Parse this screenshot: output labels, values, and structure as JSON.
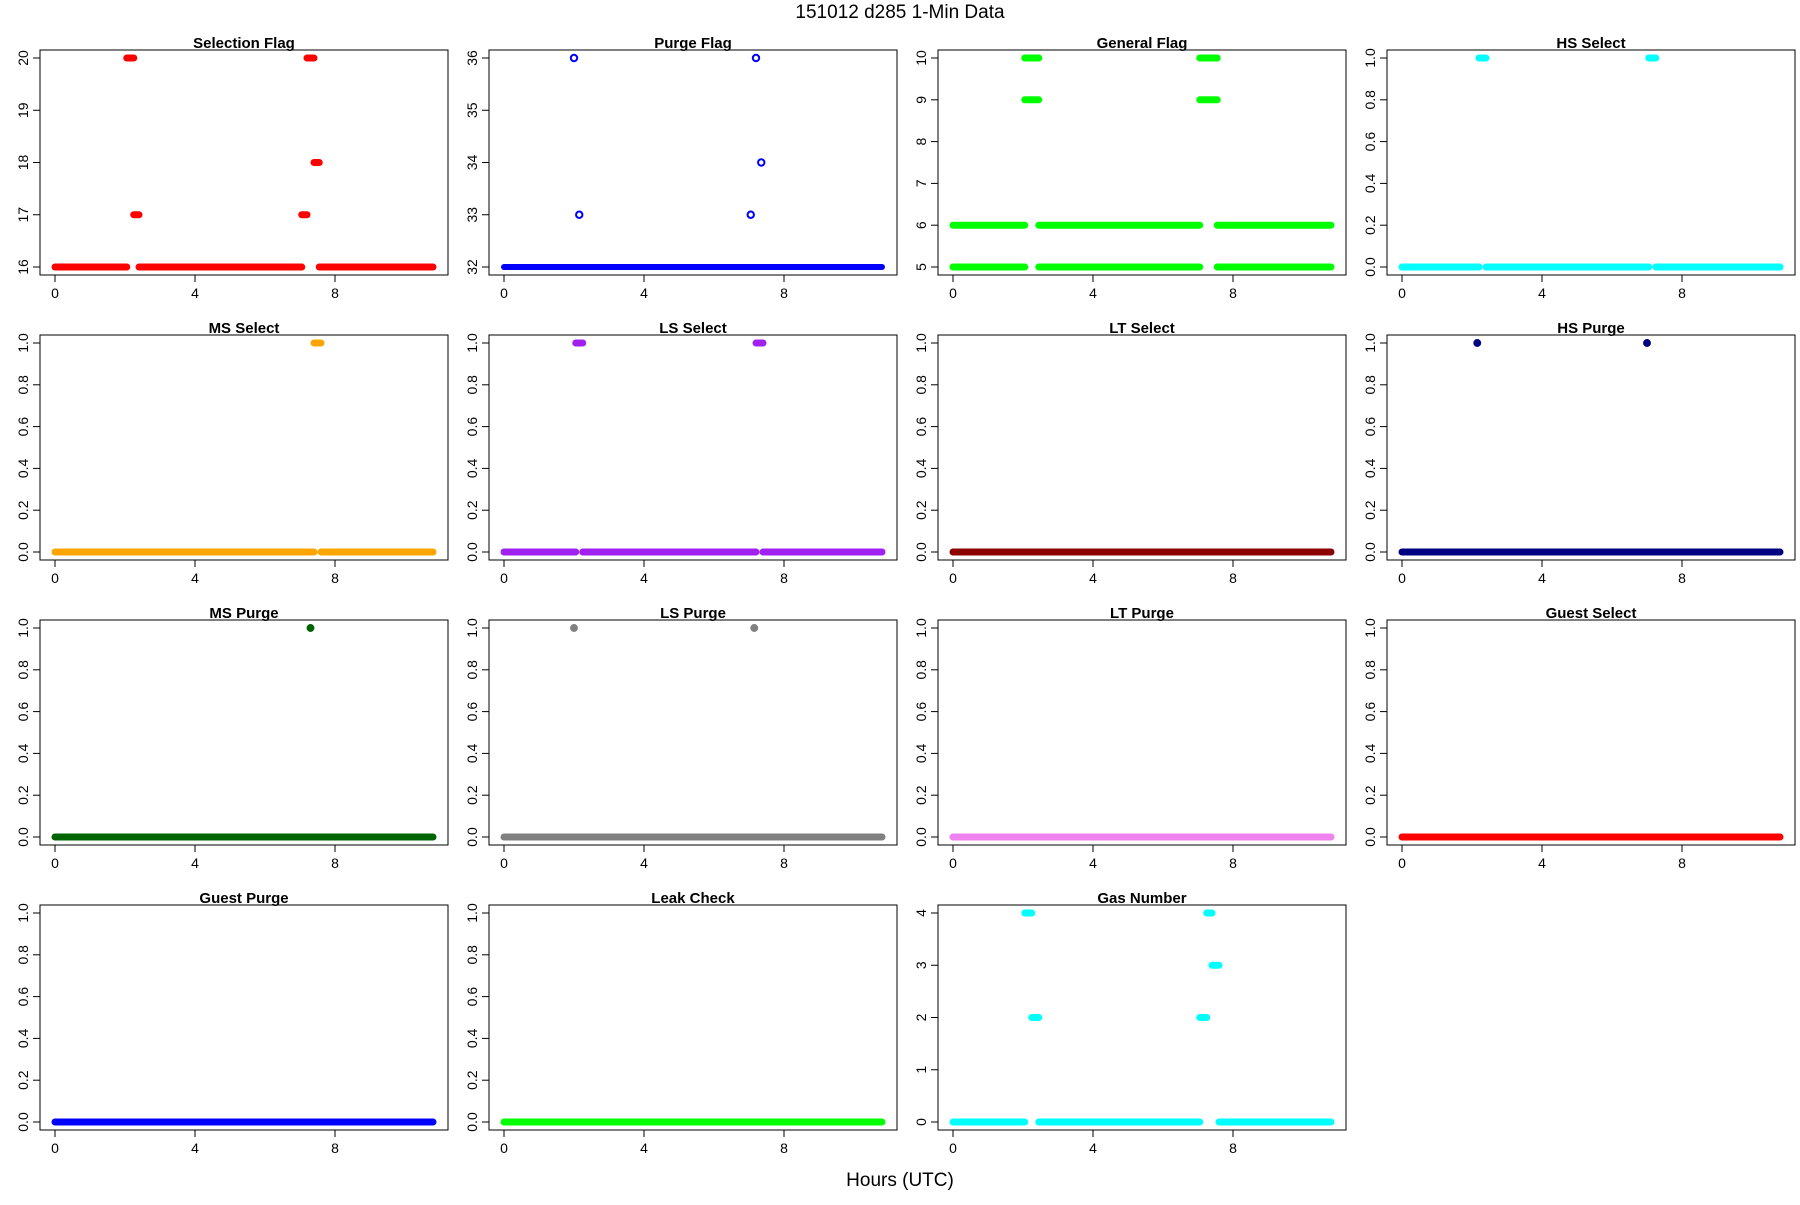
{
  "figure": {
    "title": "151012   d285   1-Min Data",
    "xlabel": "Hours (UTC)"
  },
  "chart_data": [
    {
      "type": "scatter",
      "title": "Selection Flag",
      "color": "#ff0000",
      "marker": "filled",
      "xlim": [
        0,
        10.8
      ],
      "ylim": [
        16,
        20
      ],
      "xticks": [
        0,
        4,
        8
      ],
      "yticks": [
        16,
        17,
        18,
        19,
        20
      ],
      "segments": [
        [
          0,
          2.05,
          16
        ],
        [
          2.05,
          2.25,
          20
        ],
        [
          2.25,
          2.4,
          17
        ],
        [
          2.4,
          7.05,
          16
        ],
        [
          7.05,
          7.2,
          17
        ],
        [
          7.2,
          7.4,
          20
        ],
        [
          7.4,
          7.55,
          18
        ],
        [
          7.55,
          10.8,
          16
        ]
      ]
    },
    {
      "type": "scatter",
      "title": "Purge Flag",
      "color": "#0000ff",
      "marker": "open",
      "xlim": [
        0,
        10.8
      ],
      "ylim": [
        32,
        36
      ],
      "xticks": [
        0,
        4,
        8
      ],
      "yticks": [
        32,
        33,
        34,
        35,
        36
      ],
      "segments": [
        [
          0,
          10.8,
          32
        ]
      ],
      "points": [
        [
          2.0,
          36
        ],
        [
          2.15,
          33
        ],
        [
          7.05,
          33
        ],
        [
          7.2,
          36
        ],
        [
          7.35,
          34
        ]
      ]
    },
    {
      "type": "scatter",
      "title": "General Flag",
      "color": "#00ff00",
      "marker": "filled",
      "xlim": [
        0,
        10.8
      ],
      "ylim": [
        5,
        10
      ],
      "xticks": [
        0,
        4,
        8
      ],
      "yticks": [
        5,
        6,
        7,
        8,
        9,
        10
      ],
      "segments": [
        [
          0,
          2.05,
          5
        ],
        [
          0,
          2.05,
          6
        ],
        [
          2.05,
          2.45,
          10
        ],
        [
          2.05,
          2.45,
          9
        ],
        [
          2.45,
          7.05,
          5
        ],
        [
          2.45,
          7.05,
          6
        ],
        [
          7.05,
          7.55,
          10
        ],
        [
          7.05,
          7.55,
          9
        ],
        [
          7.55,
          10.8,
          5
        ],
        [
          7.55,
          10.8,
          6
        ]
      ]
    },
    {
      "type": "scatter",
      "title": "HS Select",
      "color": "#00ffff",
      "marker": "filled",
      "xlim": [
        0,
        10.8
      ],
      "ylim": [
        0,
        1
      ],
      "xticks": [
        0,
        4,
        8
      ],
      "yticks": [
        0,
        0.2,
        0.4,
        0.6,
        0.8,
        1.0
      ],
      "segments": [
        [
          0,
          2.2,
          0
        ],
        [
          2.2,
          2.4,
          1
        ],
        [
          2.4,
          7.05,
          0
        ],
        [
          7.05,
          7.25,
          1
        ],
        [
          7.25,
          10.8,
          0
        ]
      ]
    },
    {
      "type": "scatter",
      "title": "MS Select",
      "color": "#ffa500",
      "marker": "filled",
      "xlim": [
        0,
        10.8
      ],
      "ylim": [
        0,
        1
      ],
      "xticks": [
        0,
        4,
        8
      ],
      "yticks": [
        0,
        0.2,
        0.4,
        0.6,
        0.8,
        1.0
      ],
      "segments": [
        [
          0,
          7.4,
          0
        ],
        [
          7.4,
          7.6,
          1
        ],
        [
          7.6,
          10.8,
          0
        ]
      ]
    },
    {
      "type": "scatter",
      "title": "LS Select",
      "color": "#a020f0",
      "marker": "filled",
      "xlim": [
        0,
        10.8
      ],
      "ylim": [
        0,
        1
      ],
      "xticks": [
        0,
        4,
        8
      ],
      "yticks": [
        0,
        0.2,
        0.4,
        0.6,
        0.8,
        1.0
      ],
      "segments": [
        [
          0,
          2.05,
          0
        ],
        [
          2.05,
          2.25,
          1
        ],
        [
          2.25,
          7.2,
          0
        ],
        [
          7.2,
          7.4,
          1
        ],
        [
          7.4,
          10.8,
          0
        ]
      ]
    },
    {
      "type": "scatter",
      "title": "LT Select",
      "color": "#8b0000",
      "marker": "filled",
      "xlim": [
        0,
        10.8
      ],
      "ylim": [
        0,
        1
      ],
      "xticks": [
        0,
        4,
        8
      ],
      "yticks": [
        0,
        0.2,
        0.4,
        0.6,
        0.8,
        1.0
      ],
      "segments": [
        [
          0,
          10.8,
          0
        ]
      ]
    },
    {
      "type": "scatter",
      "title": "HS Purge",
      "color": "#000080",
      "marker": "filled",
      "xlim": [
        0,
        10.8
      ],
      "ylim": [
        0,
        1
      ],
      "xticks": [
        0,
        4,
        8
      ],
      "yticks": [
        0,
        0.2,
        0.4,
        0.6,
        0.8,
        1.0
      ],
      "segments": [
        [
          0,
          10.8,
          0
        ]
      ],
      "points": [
        [
          2.15,
          1
        ],
        [
          7.0,
          1
        ]
      ]
    },
    {
      "type": "scatter",
      "title": "MS Purge",
      "color": "#006400",
      "marker": "filled",
      "xlim": [
        0,
        10.8
      ],
      "ylim": [
        0,
        1
      ],
      "xticks": [
        0,
        4,
        8
      ],
      "yticks": [
        0,
        0.2,
        0.4,
        0.6,
        0.8,
        1.0
      ],
      "segments": [
        [
          0,
          10.8,
          0
        ]
      ],
      "points": [
        [
          7.3,
          1
        ]
      ]
    },
    {
      "type": "scatter",
      "title": "LS Purge",
      "color": "#808080",
      "marker": "filled",
      "xlim": [
        0,
        10.8
      ],
      "ylim": [
        0,
        1
      ],
      "xticks": [
        0,
        4,
        8
      ],
      "yticks": [
        0,
        0.2,
        0.4,
        0.6,
        0.8,
        1.0
      ],
      "segments": [
        [
          0,
          10.8,
          0
        ]
      ],
      "points": [
        [
          2.0,
          1
        ],
        [
          7.15,
          1
        ]
      ]
    },
    {
      "type": "scatter",
      "title": "LT Purge",
      "color": "#ee82ee",
      "marker": "filled",
      "xlim": [
        0,
        10.8
      ],
      "ylim": [
        0,
        1
      ],
      "xticks": [
        0,
        4,
        8
      ],
      "yticks": [
        0,
        0.2,
        0.4,
        0.6,
        0.8,
        1.0
      ],
      "segments": [
        [
          0,
          10.8,
          0
        ]
      ]
    },
    {
      "type": "scatter",
      "title": "Guest Select",
      "color": "#ff0000",
      "marker": "filled",
      "xlim": [
        0,
        10.8
      ],
      "ylim": [
        0,
        1
      ],
      "xticks": [
        0,
        4,
        8
      ],
      "yticks": [
        0,
        0.2,
        0.4,
        0.6,
        0.8,
        1.0
      ],
      "segments": [
        [
          0,
          10.8,
          0
        ]
      ]
    },
    {
      "type": "scatter",
      "title": "Guest Purge",
      "color": "#0000ff",
      "marker": "filled",
      "xlim": [
        0,
        10.8
      ],
      "ylim": [
        0,
        1
      ],
      "xticks": [
        0,
        4,
        8
      ],
      "yticks": [
        0,
        0.2,
        0.4,
        0.6,
        0.8,
        1.0
      ],
      "segments": [
        [
          0,
          10.8,
          0
        ]
      ]
    },
    {
      "type": "scatter",
      "title": "Leak Check",
      "color": "#00ff00",
      "marker": "filled",
      "xlim": [
        0,
        10.8
      ],
      "ylim": [
        0,
        1
      ],
      "xticks": [
        0,
        4,
        8
      ],
      "yticks": [
        0,
        0.2,
        0.4,
        0.6,
        0.8,
        1.0
      ],
      "segments": [
        [
          0,
          10.8,
          0
        ]
      ]
    },
    {
      "type": "scatter",
      "title": "Gas Number",
      "color": "#00ffff",
      "marker": "filled",
      "xlim": [
        0,
        10.8
      ],
      "ylim": [
        0,
        4
      ],
      "xticks": [
        0,
        4,
        8
      ],
      "yticks": [
        0,
        1,
        2,
        3,
        4
      ],
      "segments": [
        [
          0,
          2.05,
          0
        ],
        [
          2.05,
          2.25,
          4
        ],
        [
          2.25,
          2.45,
          2
        ],
        [
          2.45,
          7.05,
          0
        ],
        [
          7.05,
          7.25,
          2
        ],
        [
          7.25,
          7.4,
          4
        ],
        [
          7.4,
          7.6,
          3
        ],
        [
          7.6,
          10.8,
          0
        ]
      ]
    }
  ]
}
